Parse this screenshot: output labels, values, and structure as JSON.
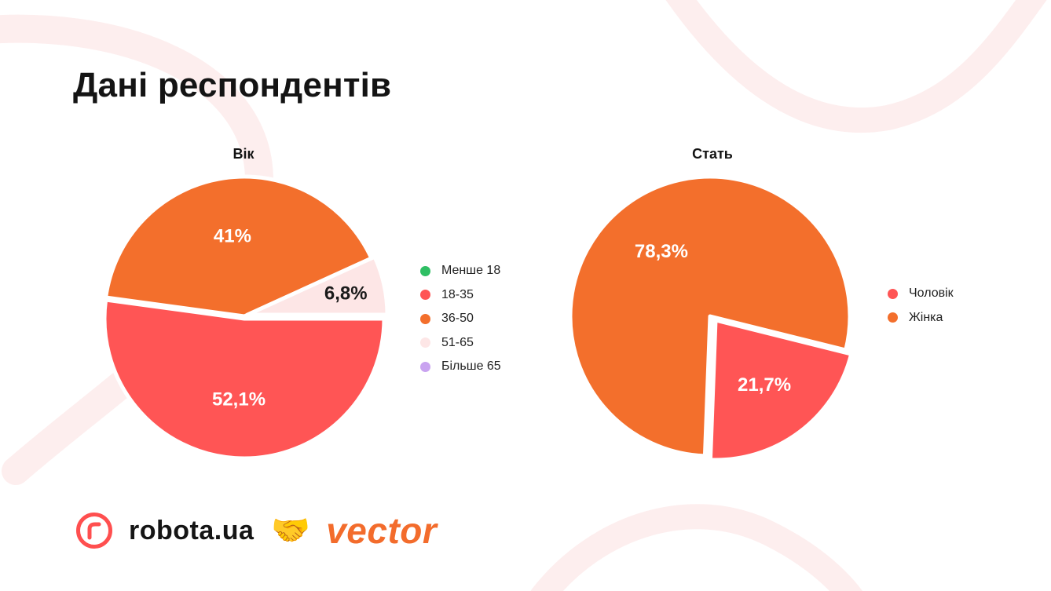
{
  "title": "Дані респондентів",
  "colors": {
    "green": "#2fbf64",
    "red": "#ff5555",
    "orange": "#f36f2c",
    "light_pink": "#fde6e6",
    "lilac": "#c9a3f0",
    "decor": "#fdeeee"
  },
  "chart_data": [
    {
      "type": "pie",
      "title": "Вік",
      "categories": [
        "Менше 18",
        "18-35",
        "36-50",
        "51-65",
        "Більше 65"
      ],
      "values": [
        0,
        52.1,
        41,
        6.8,
        0
      ],
      "labels": [
        "",
        "52,1%",
        "41%",
        "6,8%",
        ""
      ],
      "colors": [
        "#2fbf64",
        "#ff5555",
        "#f36f2c",
        "#fde6e6",
        "#c9a3f0"
      ],
      "label_colors": [
        "#ffffff",
        "#ffffff",
        "#ffffff",
        "#1a1a1a",
        "#ffffff"
      ],
      "legend": "right"
    },
    {
      "type": "pie",
      "title": "Стать",
      "categories": [
        "Чоловік",
        "Жінка"
      ],
      "values": [
        21.7,
        78.3
      ],
      "labels": [
        "21,7%",
        "78,3%"
      ],
      "colors": [
        "#ff5555",
        "#f36f2c"
      ],
      "label_colors": [
        "#ffffff",
        "#ffffff"
      ],
      "legend": "right"
    }
  ],
  "footer": {
    "brand": "robota.ua",
    "logo_icon": "robota-logo-icon",
    "handshake": "🤝",
    "partner": "vector"
  }
}
